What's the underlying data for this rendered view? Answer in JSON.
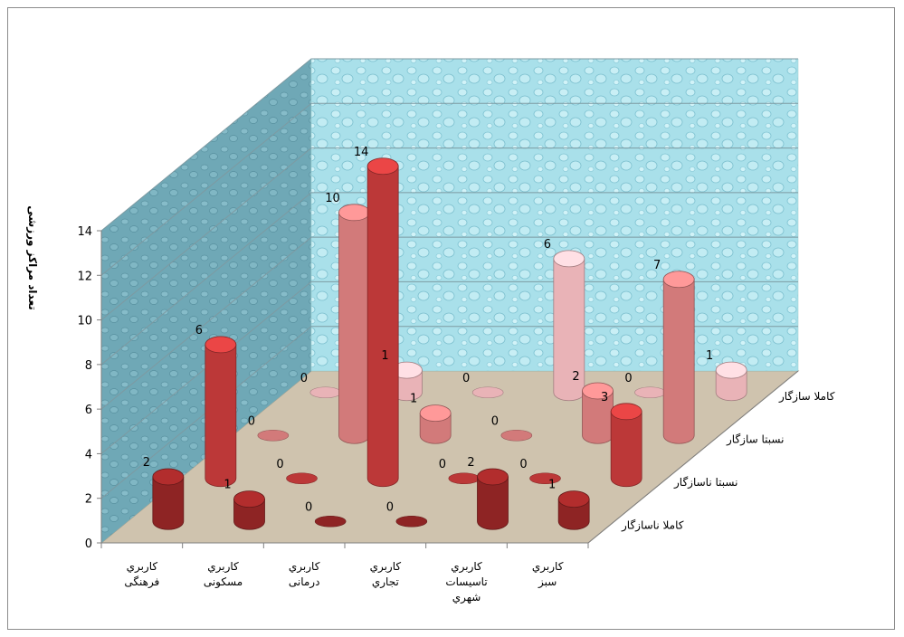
{
  "chart_data": {
    "type": "bar",
    "title": "",
    "ylabel": "تعداد مراکز ورزشی",
    "ylim": [
      0,
      14
    ],
    "yticks": [
      "0",
      "2",
      "4",
      "6",
      "8",
      "10",
      "12",
      "14"
    ],
    "categories": [
      "كاربري فرهنگی",
      "كاربري مسكونی",
      "كاربري درمانی",
      "كاربري تجاري",
      "كاربري تاسيسات شهري",
      "كاربري سبز"
    ],
    "series": [
      {
        "name": "کاملا ناسازگار",
        "values": [
          2,
          1,
          0,
          0,
          2,
          1
        ]
      },
      {
        "name": "نسبتا ناسازگار",
        "values": [
          6,
          0,
          14,
          0,
          0,
          3
        ]
      },
      {
        "name": "نسبتا سازگار",
        "values": [
          0,
          10,
          1,
          0,
          2,
          7
        ]
      },
      {
        "name": "کاملا سازگار",
        "values": [
          0,
          1,
          0,
          6,
          0,
          1
        ]
      }
    ],
    "colors": [
      "#8e2424",
      "#bc3838",
      "#d27a7a",
      "#e9b3b7"
    ],
    "grid": true,
    "legend": "depth axis"
  }
}
